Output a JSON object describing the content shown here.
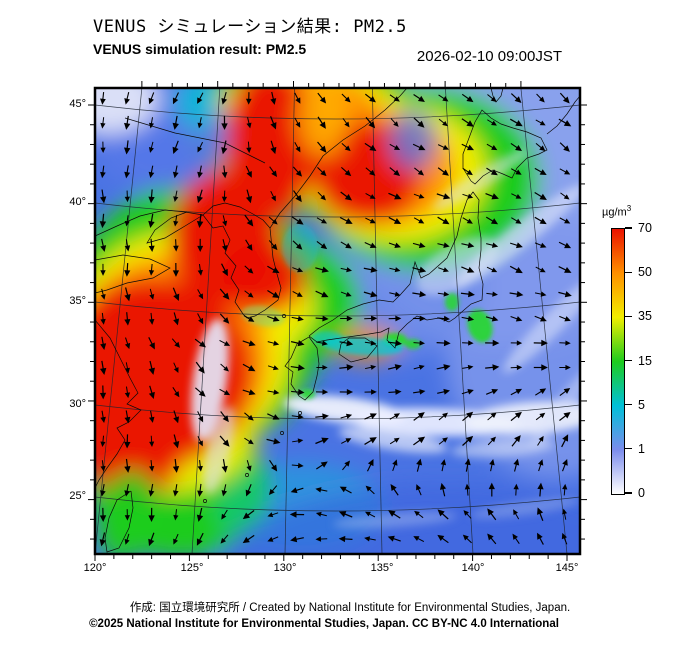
{
  "header": {
    "title_ja": "VENUS シミュレーション結果: PM2.5",
    "title_en": "VENUS simulation result: PM2.5",
    "timestamp": "2026-02-10 09:00JST"
  },
  "colorbar": {
    "unit_prefix": "µg/m",
    "unit_exponent": "3",
    "ticks": [
      "70",
      "50",
      "35",
      "15",
      "5",
      "1",
      "0"
    ],
    "gradient_stops": [
      [
        0,
        "#ffffff"
      ],
      [
        16.7,
        "#7b8cec"
      ],
      [
        33.3,
        "#00c0d8"
      ],
      [
        50,
        "#1ecc1e"
      ],
      [
        66.7,
        "#f2ee00"
      ],
      [
        83.3,
        "#ff9000"
      ],
      [
        100,
        "#ea1200"
      ]
    ]
  },
  "axes": {
    "lat": [
      [
        "45°",
        17
      ],
      [
        "40°",
        115
      ],
      [
        "35°",
        214
      ],
      [
        "30°",
        317
      ],
      [
        "25°",
        409
      ]
    ],
    "lon": [
      [
        "120°",
        0
      ],
      [
        "125°",
        97
      ],
      [
        "130°",
        190
      ],
      [
        "135°",
        287
      ],
      [
        "140°",
        378
      ],
      [
        "145°",
        472
      ]
    ]
  },
  "footer": {
    "credit_line": "作成: 国立環境研究所 / Created by National Institute for Environmental Studies, Japan.",
    "license_line": "©2025 National Institute for Environmental Studies, Japan. CC BY-NC 4.0 International"
  },
  "map": {
    "ocean_color": "#4a73e3",
    "field_blobs": [
      [
        410,
        110,
        170,
        150,
        0,
        "#8ca3ee",
        0.95
      ],
      [
        460,
        260,
        110,
        130,
        0,
        "#7e97ec",
        0.85
      ],
      [
        300,
        200,
        90,
        70,
        0,
        "#6e8cea",
        0.8
      ],
      [
        100,
        230,
        130,
        135,
        0,
        "#1ecc1e",
        1
      ],
      [
        215,
        45,
        125,
        80,
        0,
        "#1ecc1e",
        1
      ],
      [
        330,
        90,
        115,
        92,
        0,
        "#1ecc1e",
        1
      ],
      [
        175,
        215,
        90,
        70,
        0,
        "#1ecc1e",
        1
      ],
      [
        85,
        400,
        90,
        70,
        0,
        "#1ecc1e",
        1
      ],
      [
        85,
        255,
        112,
        112,
        0,
        "#f2ee00",
        1
      ],
      [
        212,
        38,
        98,
        62,
        0,
        "#f2ee00",
        1
      ],
      [
        300,
        85,
        92,
        70,
        0,
        "#f2ee00",
        1
      ],
      [
        158,
        218,
        62,
        48,
        0,
        "#f2ee00",
        1
      ],
      [
        75,
        345,
        85,
        60,
        0,
        "#f2ee00",
        0.95
      ],
      [
        75,
        268,
        98,
        100,
        0,
        "#ff9000",
        1
      ],
      [
        215,
        35,
        75,
        50,
        0,
        "#ff9000",
        1
      ],
      [
        288,
        80,
        72,
        58,
        0,
        "#ff9000",
        1
      ],
      [
        135,
        175,
        35,
        30,
        0,
        "#ff9000",
        0.85
      ],
      [
        58,
        285,
        100,
        95,
        0,
        "#ea1200",
        1
      ],
      [
        130,
        150,
        55,
        70,
        0,
        "#ea1200",
        1
      ],
      [
        175,
        55,
        47,
        78,
        0,
        "#ea1200",
        1
      ],
      [
        272,
        85,
        55,
        52,
        0,
        "#ea1200",
        1
      ],
      [
        170,
        190,
        42,
        36,
        0,
        "#ea1200",
        0.95
      ],
      [
        38,
        345,
        55,
        68,
        0,
        "#ea1200",
        1
      ],
      [
        228,
        30,
        26,
        40,
        0,
        "#ffb000",
        0.85
      ],
      [
        62,
        45,
        70,
        58,
        0,
        "#5577e8",
        0.95
      ],
      [
        14,
        10,
        50,
        36,
        0,
        "#dfe3f8",
        0.97
      ],
      [
        103,
        14,
        23,
        28,
        0,
        "#00c0d8",
        0.8
      ],
      [
        318,
        52,
        24,
        30,
        0,
        "#5f7ce8",
        0.8
      ],
      [
        272,
        256,
        32,
        18,
        0,
        "#ff9000",
        0.8
      ],
      [
        205,
        420,
        85,
        45,
        0,
        "#00c0d8",
        0.4
      ],
      [
        32,
        428,
        30,
        46,
        12,
        "#1ecc1e",
        0.95
      ],
      [
        350,
        480,
        230,
        85,
        0,
        "#3a64dd",
        0.6
      ]
    ],
    "cloud_blobs": [
      [
        115,
        292,
        17,
        62,
        8,
        "#e3e8fb",
        0.9
      ],
      [
        124,
        362,
        12,
        45,
        14,
        "#dde3fa",
        0.6
      ],
      [
        250,
        322,
        62,
        13,
        7,
        "#eef1fc",
        0.95
      ],
      [
        340,
        334,
        85,
        14,
        2,
        "#ecefff",
        0.92
      ],
      [
        438,
        330,
        68,
        16,
        -4,
        "#eef1fc",
        0.92
      ],
      [
        298,
        352,
        55,
        10,
        9,
        "#e6eafb",
        0.7
      ],
      [
        408,
        360,
        52,
        9,
        -4,
        "#dfe5fa",
        0.55
      ],
      [
        425,
        148,
        82,
        12,
        -38,
        "#e2e8fb",
        0.6
      ],
      [
        458,
        235,
        70,
        11,
        -45,
        "#dfe6fb",
        0.55
      ],
      [
        385,
        92,
        55,
        9,
        -32,
        "#dde4fa",
        0.5
      ],
      [
        468,
        318,
        52,
        9,
        -52,
        "#dce3fa",
        0.45
      ],
      [
        362,
        178,
        45,
        22,
        -30,
        "#dde4fa",
        0.5
      ],
      [
        300,
        432,
        62,
        7,
        -4,
        "#b9c8f2",
        0.4
      ],
      [
        430,
        420,
        55,
        7,
        -8,
        "#b9c8f2",
        0.35
      ]
    ],
    "spot_blobs": [
      [
        300,
        252,
        12,
        7,
        0,
        "#22dd22",
        0.9
      ],
      [
        318,
        256,
        8,
        5,
        0,
        "#22dd22",
        0.85
      ],
      [
        385,
        238,
        12,
        17,
        -18,
        "#22dd22",
        0.85
      ],
      [
        357,
        214,
        7,
        9,
        0,
        "#22dd22",
        0.8
      ],
      [
        213,
        306,
        7,
        5,
        0,
        "#22dd22",
        0.8
      ],
      [
        268,
        258,
        40,
        9,
        4,
        "#00c8d8",
        0.75
      ],
      [
        232,
        250,
        16,
        7,
        0,
        "#00c8d8",
        0.6
      ],
      [
        205,
        160,
        18,
        24,
        0,
        "#18b8d8",
        0.45
      ],
      [
        168,
        228,
        22,
        10,
        10,
        "#80e080",
        0.5
      ]
    ],
    "wind_angles": [
      [
        95,
        105,
        110,
        85,
        60,
        48,
        40,
        35,
        38,
        42
      ],
      [
        92,
        103,
        110,
        75,
        55,
        42,
        34,
        30,
        33,
        38
      ],
      [
        88,
        98,
        105,
        62,
        45,
        32,
        28,
        26,
        30,
        34
      ],
      [
        84,
        92,
        92,
        48,
        32,
        22,
        20,
        20,
        25,
        28
      ],
      [
        80,
        84,
        65,
        32,
        18,
        10,
        8,
        12,
        18,
        20
      ],
      [
        82,
        70,
        42,
        18,
        6,
        0,
        -2,
        3,
        8,
        10
      ],
      [
        86,
        78,
        48,
        22,
        2,
        -8,
        -18,
        -25,
        -30,
        -35
      ],
      [
        90,
        86,
        72,
        40,
        -18,
        -38,
        -48,
        -55,
        -60,
        -65
      ],
      [
        94,
        96,
        104,
        140,
        182,
        205,
        225,
        245,
        260,
        272
      ],
      [
        98,
        104,
        115,
        158,
        182,
        192,
        200,
        208,
        218,
        240
      ]
    ]
  }
}
